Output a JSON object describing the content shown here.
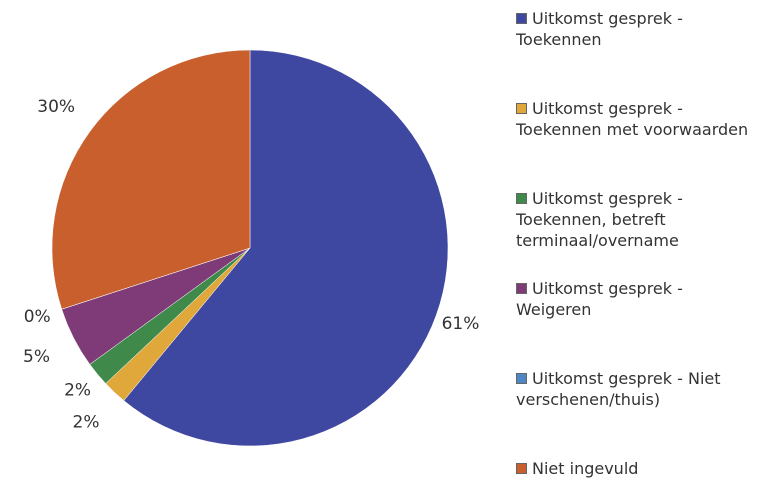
{
  "chart_data": {
    "type": "pie",
    "categories": [
      "Uitkomst gesprek - Toekennen",
      "Uitkomst gesprek - Toekennen met voorwaarden",
      "Uitkomst gesprek - Toekennen, betreft terminaal/overname",
      "Uitkomst gesprek - Weigeren",
      "Uitkomst gesprek - Niet verschenen/thuis)",
      "Niet ingevuld"
    ],
    "values": [
      61,
      2,
      2,
      5,
      0,
      30
    ],
    "value_labels": [
      "61%",
      "2%",
      "2%",
      "5%",
      "0%",
      "30%"
    ],
    "colors": [
      "#3f48a0",
      "#e0a73a",
      "#3f8a4a",
      "#7e3b78",
      "#4f86c6",
      "#c85f2c"
    ],
    "legend": "right"
  }
}
